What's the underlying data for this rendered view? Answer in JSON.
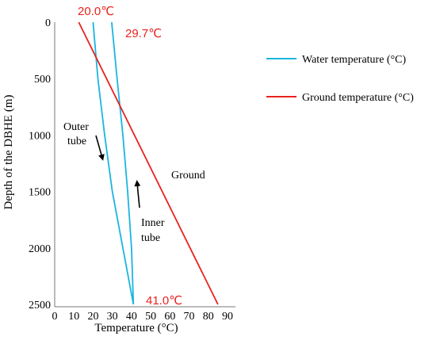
{
  "chart_data": {
    "type": "line",
    "xlabel": "Temperature (°C)",
    "ylabel": "Depth of the DBHE (m)",
    "xlim": [
      0,
      90
    ],
    "ylim": [
      2500,
      0
    ],
    "x_ticks": [
      "0",
      "10",
      "20",
      "30",
      "40",
      "50",
      "60",
      "70",
      "80",
      "90"
    ],
    "y_ticks": [
      "0",
      "500",
      "1000",
      "1500",
      "2000",
      "2500"
    ],
    "grid": false,
    "legend_position": "right",
    "series": [
      {
        "name": "Water temperature (°C)",
        "color": "#1ab5e0",
        "segments": [
          {
            "label": "Outer tube",
            "points": [
              [
                20.0,
                0
              ],
              [
                22.5,
                500
              ],
              [
                26,
                1000
              ],
              [
                30,
                1500
              ],
              [
                35.5,
                2000
              ],
              [
                41.0,
                2500
              ]
            ]
          },
          {
            "label": "Inner tube",
            "points": [
              [
                29.7,
                0
              ],
              [
                32.5,
                500
              ],
              [
                35.5,
                1000
              ],
              [
                38,
                1500
              ],
              [
                40,
                2000
              ],
              [
                41.0,
                2500
              ]
            ]
          }
        ]
      },
      {
        "name": "Ground temperature (°C)",
        "color": "#e8231f",
        "points": [
          [
            12.5,
            0
          ],
          [
            85,
            2500
          ]
        ]
      }
    ],
    "annotations": {
      "outlet_temp": "20.0℃",
      "inlet_temp": "29.7℃",
      "bottom_temp": "41.0℃",
      "outer_tube_line1": "Outer",
      "outer_tube_line2": "tube",
      "inner_tube_line1": "Inner",
      "inner_tube_line2": "tube",
      "ground_label": "Ground"
    }
  }
}
